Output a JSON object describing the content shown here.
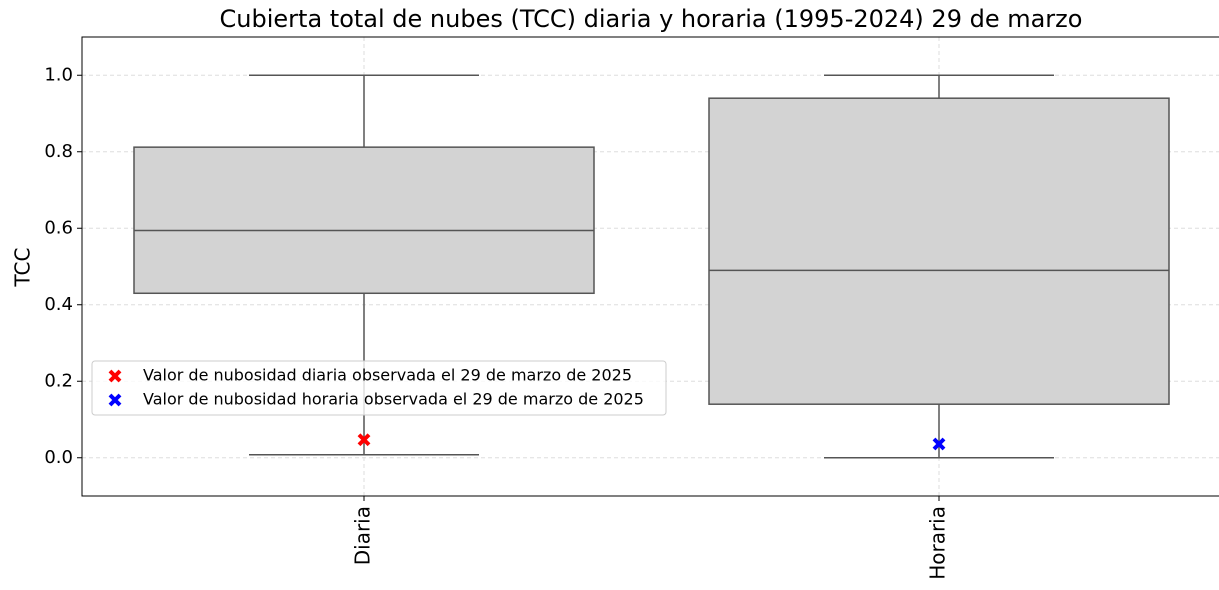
{
  "chart_data": {
    "type": "box",
    "title": "Cubierta total de nubes (TCC) diaria y horaria (1995-2024) 29 de marzo",
    "y_label": "TCC",
    "categories": [
      "Diaria",
      "Horaria"
    ],
    "boxes": [
      {
        "whislo": 0.008,
        "q1": 0.43,
        "med": 0.594,
        "q3": 0.812,
        "whishi": 1.0
      },
      {
        "whislo": 0.0,
        "q1": 0.14,
        "med": 0.49,
        "q3": 0.94,
        "whishi": 1.0
      }
    ],
    "box_color": "#d3d3d3",
    "edge_color": "#555555",
    "series": [
      {
        "name": "Valor de nubosidad diaria observada el 29 de marzo de 2025",
        "color": "#ff0000",
        "values": [
          0.047,
          null
        ]
      },
      {
        "name": "Valor de nubosidad horaria observada el 29 de marzo de 2025",
        "color": "#0000ff",
        "values": [
          null,
          0.036
        ]
      }
    ],
    "ylim": [
      -0.1,
      1.1
    ],
    "yticks": [
      {
        "value": 0,
        "label": "0.0"
      },
      {
        "value": 0.2,
        "label": "0.2"
      },
      {
        "value": 0.4,
        "label": "0.4"
      },
      {
        "value": 0.6,
        "label": "0.6"
      },
      {
        "value": 0.8,
        "label": "0.8"
      },
      {
        "value": 1,
        "label": "1.0"
      }
    ],
    "grid": true,
    "legend": "lower left"
  }
}
